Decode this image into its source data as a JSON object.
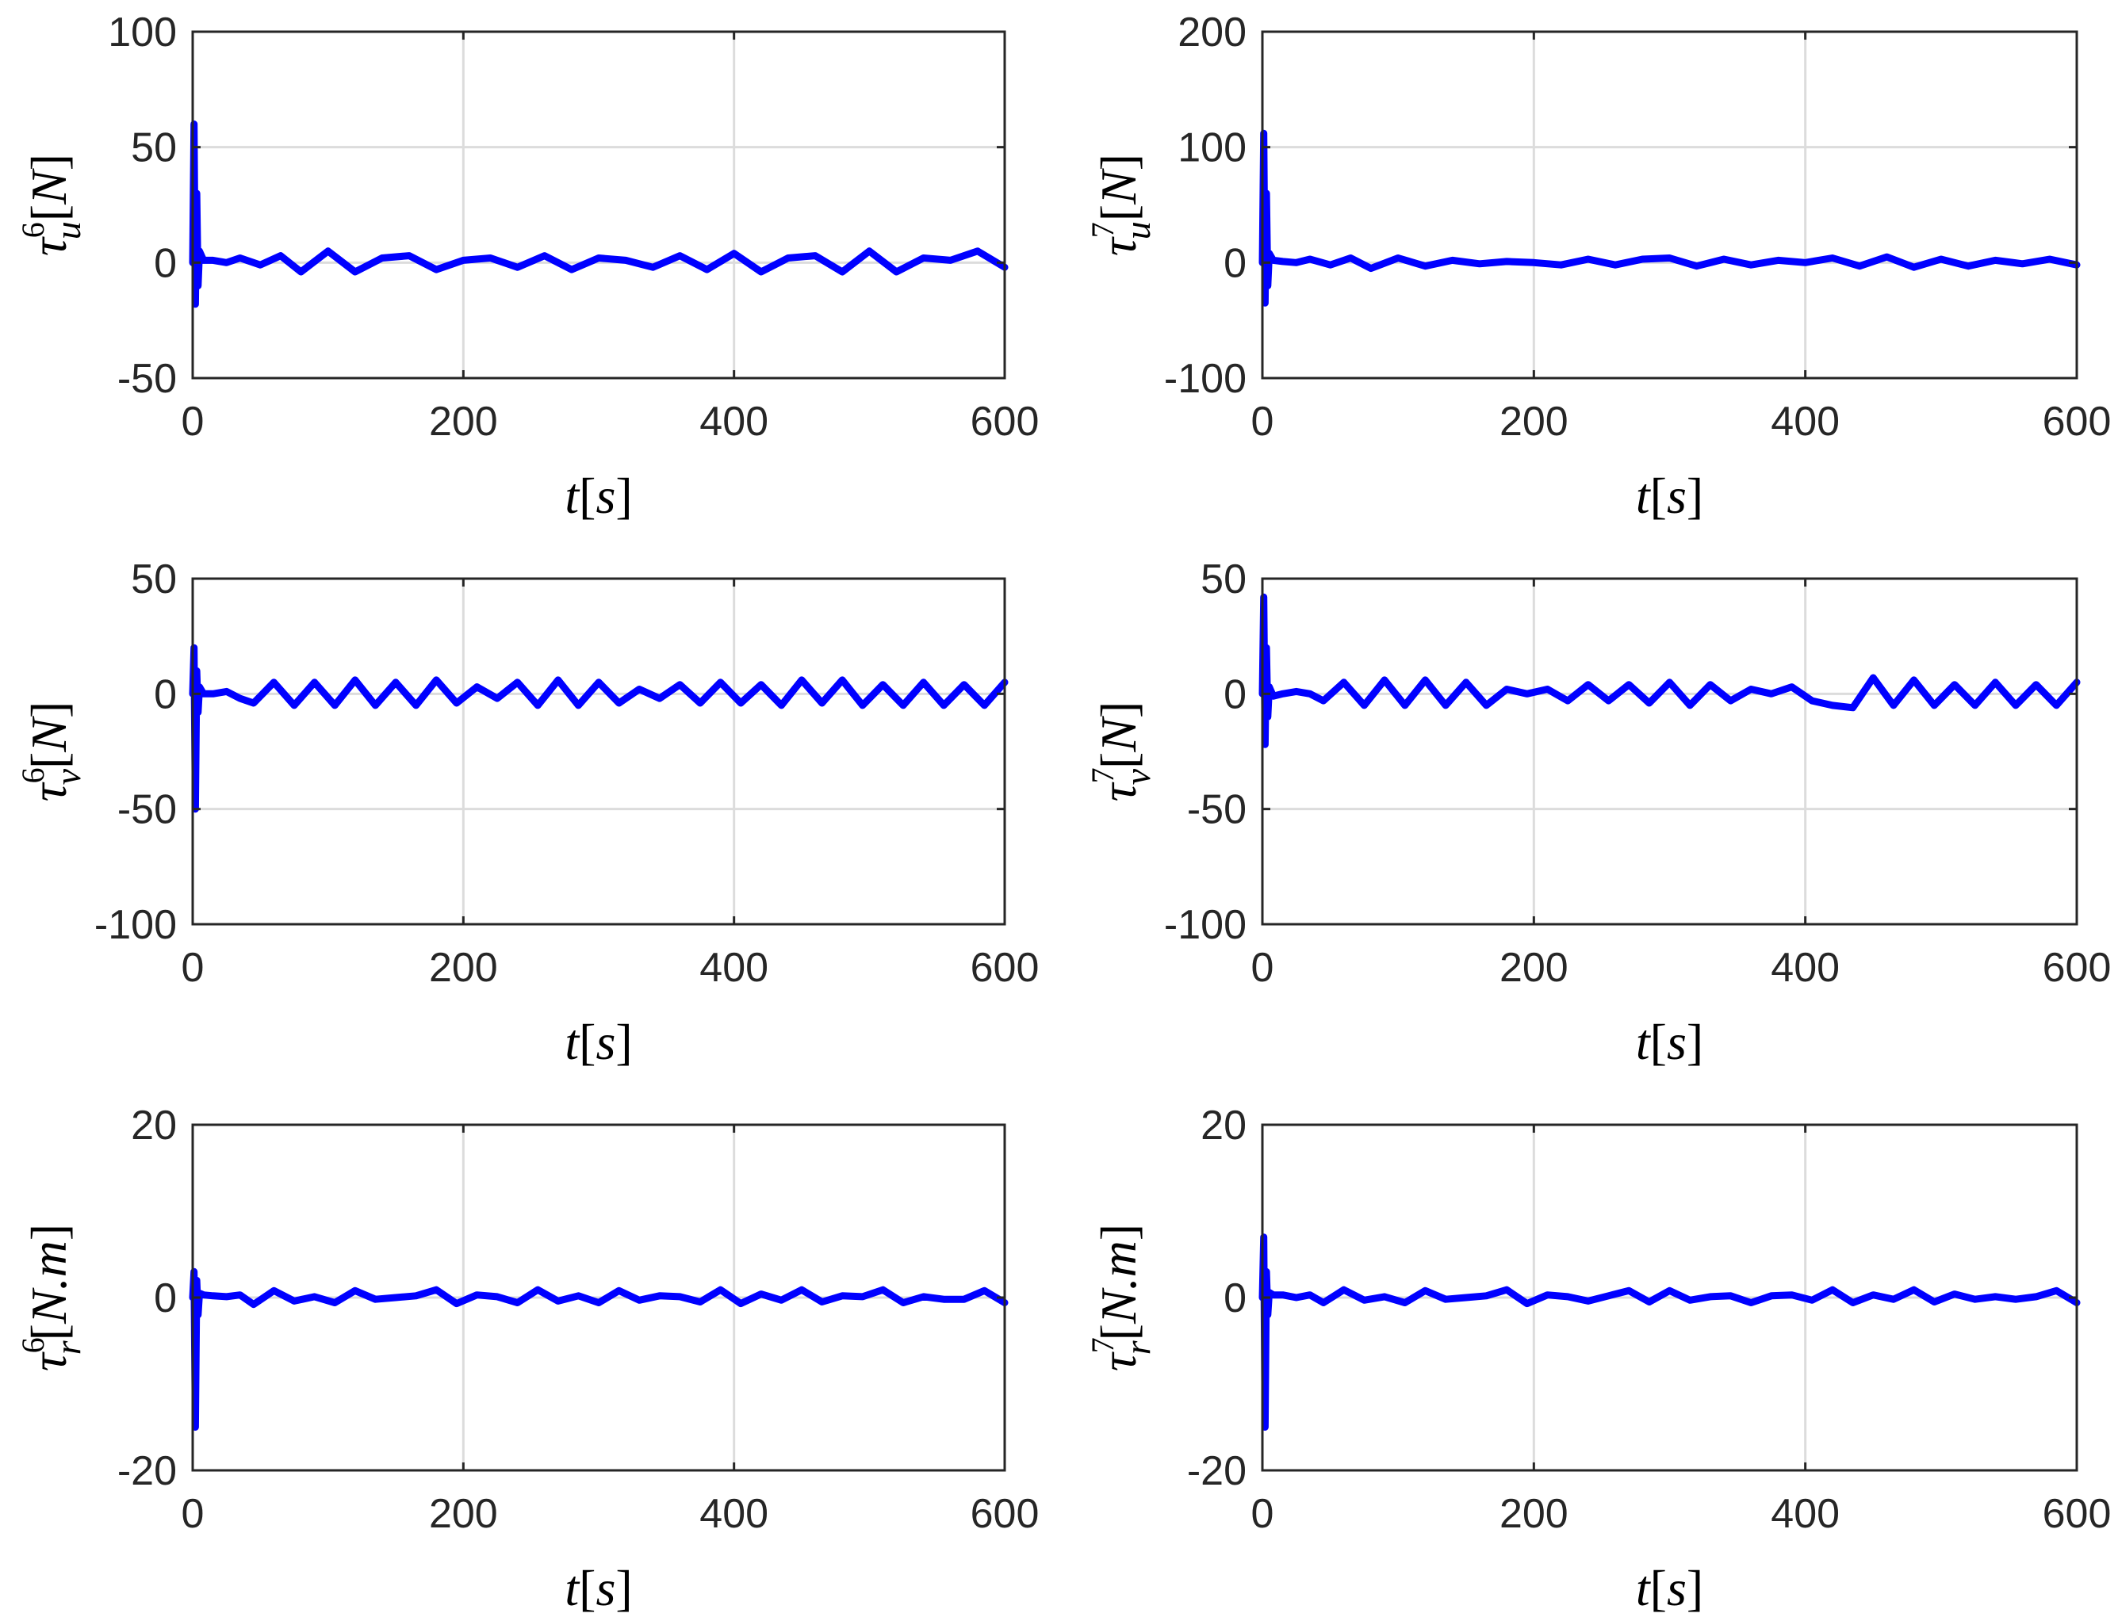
{
  "chart_data": [
    {
      "type": "line",
      "panel": "top-left",
      "xlabel": {
        "var": "t",
        "unit": "s"
      },
      "ylabel": {
        "base": "τ",
        "sub": "u",
        "sup": "6",
        "unit": "N"
      },
      "xlim": [
        0,
        600
      ],
      "ylim": [
        -50,
        100
      ],
      "xticks": [
        0,
        200,
        400,
        600
      ],
      "yticks": [
        -50,
        0,
        50,
        100
      ],
      "ytick_labels": [
        "-50",
        "0",
        "50",
        "100"
      ],
      "grid": true,
      "color": "#0000ff",
      "series": [
        {
          "x": [
            0,
            1,
            2,
            3,
            4,
            5,
            8,
            15,
            25,
            35,
            50,
            65,
            80,
            100,
            120,
            140,
            160,
            180,
            200,
            220,
            240,
            260,
            280,
            300,
            320,
            340,
            360,
            380,
            400,
            420,
            440,
            460,
            480,
            500,
            520,
            540,
            560,
            580,
            600
          ],
          "y": [
            0,
            60,
            -18,
            30,
            -10,
            5,
            1,
            1,
            0,
            2,
            -1,
            3,
            -4,
            5,
            -4,
            2,
            3,
            -3,
            1,
            2,
            -2,
            3,
            -3,
            2,
            1,
            -2,
            3,
            -3,
            4,
            -4,
            2,
            3,
            -4,
            5,
            -4,
            2,
            1,
            5,
            -2
          ]
        }
      ]
    },
    {
      "type": "line",
      "panel": "top-right",
      "xlabel": {
        "var": "t",
        "unit": "s"
      },
      "ylabel": {
        "base": "τ",
        "sub": "u",
        "sup": "7",
        "unit": "N"
      },
      "xlim": [
        0,
        600
      ],
      "ylim": [
        -100,
        200
      ],
      "xticks": [
        0,
        200,
        400,
        600
      ],
      "yticks": [
        -100,
        0,
        100,
        200
      ],
      "ytick_labels": [
        "-100",
        "0",
        "100",
        "200"
      ],
      "grid": true,
      "color": "#0000ff",
      "series": [
        {
          "x": [
            0,
            1,
            2,
            3,
            4,
            5,
            8,
            15,
            25,
            35,
            50,
            65,
            80,
            100,
            120,
            140,
            160,
            180,
            200,
            220,
            240,
            260,
            280,
            300,
            320,
            340,
            360,
            380,
            400,
            420,
            440,
            460,
            480,
            500,
            520,
            540,
            560,
            580,
            600
          ],
          "y": [
            0,
            112,
            -35,
            60,
            -20,
            8,
            2,
            1,
            0,
            3,
            -2,
            4,
            -5,
            4,
            -3,
            2,
            -1,
            1,
            0,
            -2,
            3,
            -2,
            3,
            4,
            -3,
            3,
            -2,
            2,
            0,
            4,
            -3,
            5,
            -4,
            3,
            -3,
            2,
            -1,
            3,
            -2
          ]
        }
      ]
    },
    {
      "type": "line",
      "panel": "middle-left",
      "xlabel": {
        "var": "t",
        "unit": "s"
      },
      "ylabel": {
        "base": "τ",
        "sub": "v",
        "sup": "6",
        "unit": "N"
      },
      "xlim": [
        0,
        600
      ],
      "ylim": [
        -100,
        50
      ],
      "xticks": [
        0,
        200,
        400,
        600
      ],
      "yticks": [
        -100,
        -50,
        0,
        50
      ],
      "ytick_labels": [
        "-100",
        "-50",
        "0",
        "50"
      ],
      "grid": true,
      "color": "#0000ff",
      "series": [
        {
          "x": [
            0,
            1,
            2,
            3,
            4,
            5,
            8,
            15,
            25,
            35,
            45,
            60,
            75,
            90,
            105,
            120,
            135,
            150,
            165,
            180,
            195,
            210,
            225,
            240,
            255,
            270,
            285,
            300,
            315,
            330,
            345,
            360,
            375,
            390,
            405,
            420,
            435,
            450,
            465,
            480,
            495,
            510,
            525,
            540,
            555,
            570,
            585,
            600
          ],
          "y": [
            0,
            20,
            -50,
            10,
            -8,
            3,
            0,
            0,
            1,
            -2,
            -4,
            5,
            -5,
            5,
            -5,
            6,
            -5,
            5,
            -5,
            6,
            -4,
            3,
            -2,
            5,
            -5,
            6,
            -5,
            5,
            -4,
            2,
            -2,
            4,
            -4,
            5,
            -4,
            4,
            -5,
            6,
            -4,
            6,
            -5,
            4,
            -5,
            5,
            -5,
            4,
            -5,
            5
          ]
        }
      ]
    },
    {
      "type": "line",
      "panel": "middle-right",
      "xlabel": {
        "var": "t",
        "unit": "s"
      },
      "ylabel": {
        "base": "τ",
        "sub": "v",
        "sup": "7",
        "unit": "N"
      },
      "xlim": [
        0,
        600
      ],
      "ylim": [
        -100,
        50
      ],
      "xticks": [
        0,
        200,
        400,
        600
      ],
      "yticks": [
        -100,
        -50,
        0,
        50
      ],
      "ytick_labels": [
        "-100",
        "-50",
        "0",
        "50"
      ],
      "grid": true,
      "color": "#0000ff",
      "series": [
        {
          "x": [
            0,
            1,
            2,
            3,
            4,
            5,
            8,
            15,
            25,
            35,
            45,
            60,
            75,
            90,
            105,
            120,
            135,
            150,
            165,
            180,
            195,
            210,
            225,
            240,
            255,
            270,
            285,
            300,
            315,
            330,
            345,
            360,
            375,
            390,
            405,
            420,
            435,
            450,
            465,
            480,
            495,
            510,
            525,
            540,
            555,
            570,
            585,
            600
          ],
          "y": [
            0,
            42,
            -22,
            20,
            -10,
            3,
            -1,
            0,
            1,
            0,
            -3,
            5,
            -5,
            6,
            -5,
            6,
            -5,
            5,
            -5,
            2,
            0,
            2,
            -3,
            4,
            -3,
            4,
            -4,
            5,
            -5,
            4,
            -3,
            2,
            0,
            3,
            -3,
            -5,
            -6,
            7,
            -5,
            6,
            -5,
            4,
            -5,
            5,
            -5,
            4,
            -5,
            5
          ]
        }
      ]
    },
    {
      "type": "line",
      "panel": "bottom-left",
      "xlabel": {
        "var": "t",
        "unit": "s"
      },
      "ylabel": {
        "base": "τ",
        "sub": "r",
        "sup": "6",
        "unit": "N.m"
      },
      "xlim": [
        0,
        600
      ],
      "ylim": [
        -20,
        20
      ],
      "xticks": [
        0,
        200,
        400,
        600
      ],
      "yticks": [
        -20,
        0,
        20
      ],
      "ytick_labels": [
        "-20",
        "0",
        "20"
      ],
      "grid": true,
      "color": "#0000ff",
      "series": [
        {
          "x": [
            0,
            1,
            2,
            3,
            4,
            5,
            8,
            15,
            25,
            35,
            45,
            60,
            75,
            90,
            105,
            120,
            135,
            150,
            165,
            180,
            195,
            210,
            225,
            240,
            255,
            270,
            285,
            300,
            315,
            330,
            345,
            360,
            375,
            390,
            405,
            420,
            435,
            450,
            465,
            480,
            495,
            510,
            525,
            540,
            555,
            570,
            585,
            600
          ],
          "y": [
            0,
            3,
            -15,
            2,
            -2,
            0.5,
            0.3,
            0.2,
            0.1,
            0.3,
            -0.8,
            0.8,
            -0.4,
            0.1,
            -0.6,
            0.8,
            -0.2,
            0,
            0.2,
            0.9,
            -0.7,
            0.3,
            0.1,
            -0.6,
            0.9,
            -0.4,
            0.2,
            -0.6,
            0.8,
            -0.3,
            0.2,
            0.1,
            -0.5,
            0.9,
            -0.7,
            0.4,
            -0.3,
            0.9,
            -0.5,
            0.2,
            0.1,
            0.9,
            -0.6,
            0.1,
            -0.2,
            -0.2,
            0.8,
            -0.6
          ]
        }
      ]
    },
    {
      "type": "line",
      "panel": "bottom-right",
      "xlabel": {
        "var": "t",
        "unit": "s"
      },
      "ylabel": {
        "base": "τ",
        "sub": "r",
        "sup": "7",
        "unit": "N.m"
      },
      "xlim": [
        0,
        600
      ],
      "ylim": [
        -20,
        20
      ],
      "xticks": [
        0,
        200,
        400,
        600
      ],
      "yticks": [
        -20,
        0,
        20
      ],
      "ytick_labels": [
        "-20",
        "0",
        "20"
      ],
      "grid": true,
      "color": "#0000ff",
      "series": [
        {
          "x": [
            0,
            1,
            2,
            3,
            4,
            5,
            8,
            15,
            25,
            35,
            45,
            60,
            75,
            90,
            105,
            120,
            135,
            150,
            165,
            180,
            195,
            210,
            225,
            240,
            255,
            270,
            285,
            300,
            315,
            330,
            345,
            360,
            375,
            390,
            405,
            420,
            435,
            450,
            465,
            480,
            495,
            510,
            525,
            540,
            555,
            570,
            585,
            600
          ],
          "y": [
            0,
            7,
            -15,
            3,
            -2,
            0.6,
            0.3,
            0.3,
            0,
            0.3,
            -0.6,
            0.9,
            -0.3,
            0.1,
            -0.6,
            0.8,
            -0.2,
            0,
            0.2,
            0.9,
            -0.7,
            0.3,
            0.1,
            -0.4,
            0.2,
            0.8,
            -0.5,
            0.8,
            -0.3,
            0.1,
            0.2,
            -0.6,
            0.2,
            0.3,
            -0.3,
            0.9,
            -0.6,
            0.3,
            -0.2,
            0.9,
            -0.5,
            0.4,
            -0.2,
            0.1,
            -0.2,
            0.1,
            0.8,
            -0.6
          ]
        }
      ]
    }
  ]
}
